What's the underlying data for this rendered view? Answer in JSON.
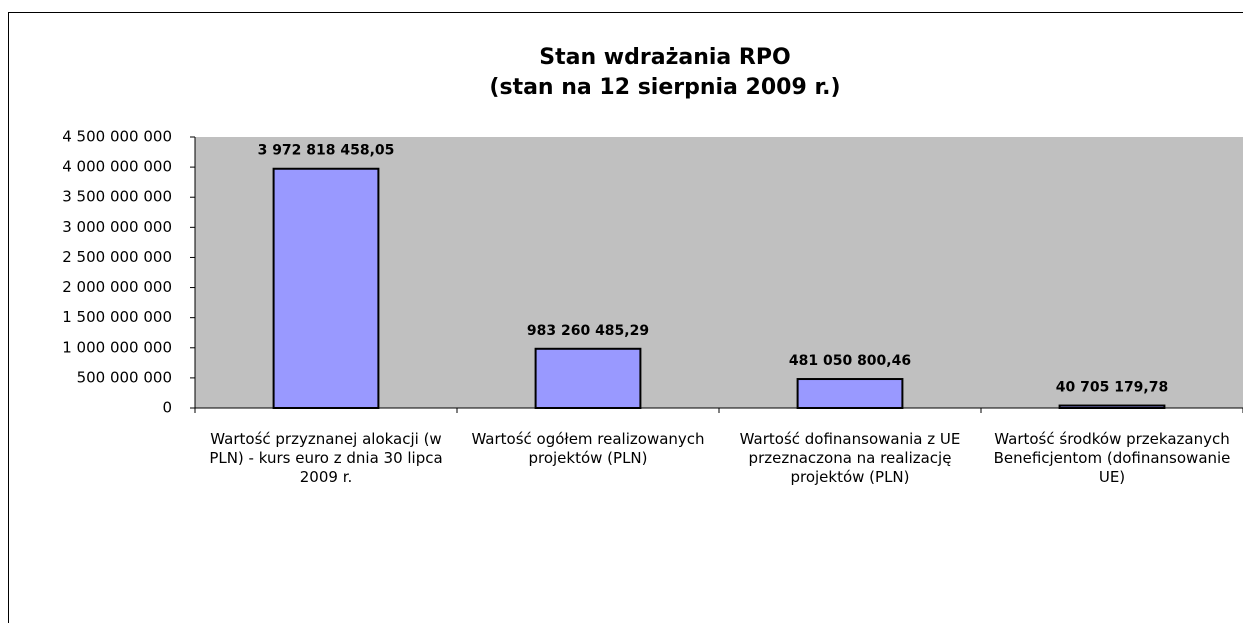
{
  "chart_data": {
    "type": "bar",
    "title": "Stan wdrażania RPO",
    "subtitle": "(stan na 12 sierpnia 2009 r.)",
    "categories": [
      "Wartość przyznanej alokacji (w PLN) - kurs euro z dnia 30 lipca 2009 r.",
      "Wartość ogółem realizowanych projektów (PLN)",
      "Wartość dofinansowania z UE przeznaczona na realizację projektów (PLN)",
      "Wartość środków przekazanych Beneficjentom (dofinansowanie UE)"
    ],
    "values": [
      3972818458.05,
      983260485.29,
      481050800.46,
      40705179.78
    ],
    "value_labels": [
      "3 972 818 458,05",
      "983 260 485,29",
      "481 050 800,46",
      "40 705 179,78"
    ],
    "color": "#9999ff",
    "ylim": [
      0,
      4500000000
    ],
    "yticks": [
      0,
      {
        "value": 500000000,
        "label": "500 000 000"
      },
      {
        "value": 1000000000,
        "label": "1 000 000 000"
      },
      {
        "value": 1500000000,
        "label": "1 500 000 000"
      },
      {
        "value": 2000000000,
        "label": "2 000 000 000"
      },
      {
        "value": 2500000000,
        "label": "2 500 000 000"
      },
      {
        "value": 3000000000,
        "label": "3 000 000 000"
      },
      {
        "value": 3500000000,
        "label": "3 500 000 000"
      },
      {
        "value": 4000000000,
        "label": "4 000 000 000"
      },
      {
        "value": 4500000000,
        "label": "4 500 000 000"
      }
    ],
    "grid": false
  }
}
